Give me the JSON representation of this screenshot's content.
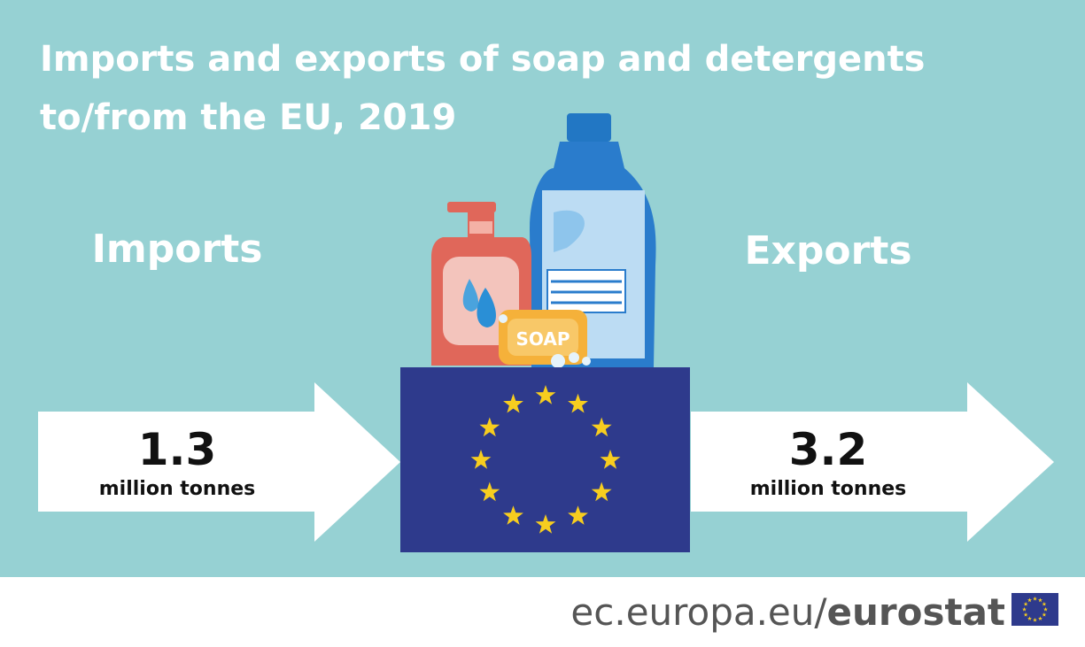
{
  "header": {
    "title_line1": "Imports and exports of soap and detergents",
    "title_line2": "to/from the EU, 2019"
  },
  "imports": {
    "label": "Imports",
    "value": 1.3,
    "unit": "million tonnes"
  },
  "exports": {
    "label": "Exports",
    "value": 3.2,
    "unit": "million tonnes"
  },
  "illustration": {
    "soap_label": "SOAP"
  },
  "footer": {
    "site": "ec.europa.eu/",
    "brand": "eurostat"
  }
}
